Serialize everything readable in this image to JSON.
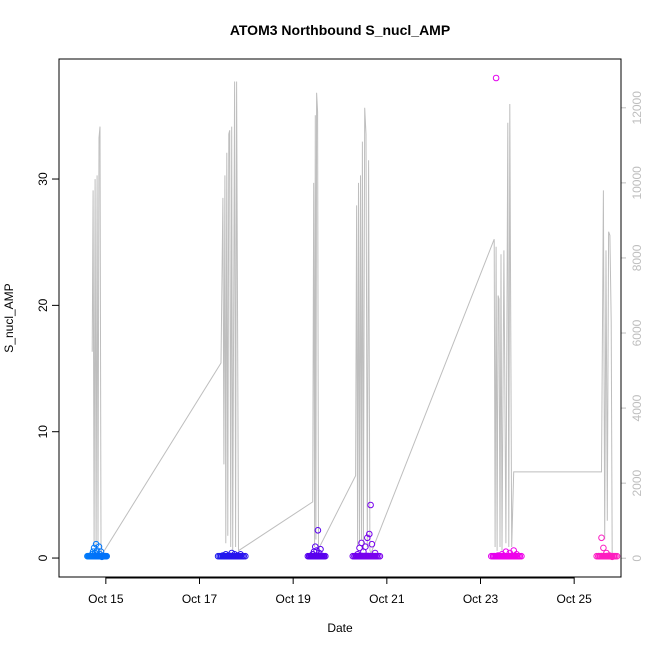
{
  "chart_data": {
    "type": "scatter",
    "title": "ATOM3 Northbound S_nucl_AMP",
    "xlabel": "Date",
    "ylabel": "S_nucl_AMP",
    "xlim": [
      "2020-10-14T00:00",
      "2020-10-26T00:00"
    ],
    "ylim": [
      -1.5,
      39.5
    ],
    "y2lim": [
      -500,
      13300
    ],
    "x_ticks": [
      {
        "date": "2020-10-15T00:00",
        "label": "Oct 15"
      },
      {
        "date": "2020-10-17T00:00",
        "label": "Oct 17"
      },
      {
        "date": "2020-10-19T00:00",
        "label": "Oct 19"
      },
      {
        "date": "2020-10-21T00:00",
        "label": "Oct 21"
      },
      {
        "date": "2020-10-23T00:00",
        "label": "Oct 23"
      },
      {
        "date": "2020-10-25T00:00",
        "label": "Oct 25"
      }
    ],
    "y_ticks": [
      0,
      10,
      20,
      30
    ],
    "y2_ticks": [
      0,
      2000,
      4000,
      6000,
      8000,
      10000,
      12000
    ],
    "grid": false,
    "series": [
      {
        "role": "points",
        "color_scale": [
          "#0099ff",
          "#0033ee",
          "#4400ee",
          "#8800ee",
          "#ee00ee",
          "#ff22bb"
        ],
        "points": [
          [
            "2020-10-14T17:00",
            0.3
          ],
          [
            "2020-10-14T17:30",
            0.5
          ],
          [
            "2020-10-14T18:00",
            0.8
          ],
          [
            "2020-10-14T18:30",
            0.4
          ],
          [
            "2020-10-14T19:00",
            1.1
          ],
          [
            "2020-10-14T19:30",
            0.6
          ],
          [
            "2020-10-14T20:00",
            0.2
          ],
          [
            "2020-10-14T20:30",
            0.9
          ],
          [
            "2020-10-14T21:00",
            0.3
          ],
          [
            "2020-10-14T21:30",
            0.5
          ],
          [
            "2020-10-14T22:00",
            0.1
          ],
          [
            "2020-10-17T12:00",
            0.2
          ],
          [
            "2020-10-17T13:30",
            0.3
          ],
          [
            "2020-10-17T15:00",
            0.2
          ],
          [
            "2020-10-17T16:30",
            0.4
          ],
          [
            "2020-10-17T18:00",
            0.3
          ],
          [
            "2020-10-17T19:30",
            0.2
          ],
          [
            "2020-10-17T21:00",
            0.3
          ],
          [
            "2020-10-19T10:00",
            0.3
          ],
          [
            "2020-10-19T10:40",
            0.5
          ],
          [
            "2020-10-19T11:20",
            0.9
          ],
          [
            "2020-10-19T12:00",
            0.6
          ],
          [
            "2020-10-19T12:40",
            2.2
          ],
          [
            "2020-10-19T13:20",
            0.4
          ],
          [
            "2020-10-19T14:00",
            0.7
          ],
          [
            "2020-10-20T09:00",
            0.3
          ],
          [
            "2020-10-20T10:00",
            0.8
          ],
          [
            "2020-10-20T11:00",
            1.2
          ],
          [
            "2020-10-20T12:00",
            0.5
          ],
          [
            "2020-10-20T13:00",
            0.9
          ],
          [
            "2020-10-20T14:00",
            1.6
          ],
          [
            "2020-10-20T15:00",
            1.9
          ],
          [
            "2020-10-20T15:40",
            4.2
          ],
          [
            "2020-10-20T16:20",
            1.1
          ],
          [
            "2020-10-20T18:00",
            0.4
          ],
          [
            "2020-10-23T08:00",
            38.0
          ],
          [
            "2020-10-23T09:00",
            0.2
          ],
          [
            "2020-10-23T11:00",
            0.3
          ],
          [
            "2020-10-23T13:00",
            0.5
          ],
          [
            "2020-10-23T15:00",
            0.4
          ],
          [
            "2020-10-23T17:00",
            0.6
          ],
          [
            "2020-10-23T18:30",
            0.3
          ],
          [
            "2020-10-25T14:00",
            1.6
          ],
          [
            "2020-10-25T15:00",
            0.8
          ],
          [
            "2020-10-25T16:30",
            0.4
          ],
          [
            "2020-10-25T18:00",
            0.2
          ],
          [
            "2020-10-25T19:30",
            0.1
          ]
        ]
      },
      {
        "role": "secondary-line",
        "color": "#bebebe",
        "points": [
          [
            "2020-10-14T17:00",
            5500
          ],
          [
            "2020-10-14T17:30",
            9800
          ],
          [
            "2020-10-14T18:00",
            300
          ],
          [
            "2020-10-14T18:30",
            10100
          ],
          [
            "2020-10-14T19:00",
            200
          ],
          [
            "2020-10-14T19:30",
            10200
          ],
          [
            "2020-10-14T20:00",
            400
          ],
          [
            "2020-10-14T20:30",
            11200
          ],
          [
            "2020-10-14T21:00",
            11500
          ],
          [
            "2020-10-14T21:30",
            300
          ],
          [
            "2020-10-14T22:00",
            100
          ],
          [
            "2020-10-17T11:00",
            5200
          ],
          [
            "2020-10-17T12:00",
            9600
          ],
          [
            "2020-10-17T12:30",
            2500
          ],
          [
            "2020-10-17T13:00",
            10200
          ],
          [
            "2020-10-17T13:30",
            400
          ],
          [
            "2020-10-17T14:00",
            10800
          ],
          [
            "2020-10-17T14:30",
            600
          ],
          [
            "2020-10-17T15:00",
            11300
          ],
          [
            "2020-10-17T15:30",
            11400
          ],
          [
            "2020-10-17T16:00",
            300
          ],
          [
            "2020-10-17T16:30",
            11500
          ],
          [
            "2020-10-17T17:00",
            200
          ],
          [
            "2020-10-17T18:00",
            12700
          ],
          [
            "2020-10-17T18:30",
            300
          ],
          [
            "2020-10-17T19:00",
            12700
          ],
          [
            "2020-10-17T20:00",
            200
          ],
          [
            "2020-10-19T10:00",
            1500
          ],
          [
            "2020-10-19T10:30",
            10000
          ],
          [
            "2020-10-19T11:00",
            300
          ],
          [
            "2020-10-19T11:20",
            11800
          ],
          [
            "2020-10-19T11:40",
            500
          ],
          [
            "2020-10-19T12:00",
            12400
          ],
          [
            "2020-10-19T12:30",
            11900
          ],
          [
            "2020-10-19T13:00",
            200
          ],
          [
            "2020-10-19T13:30",
            300
          ],
          [
            "2020-10-20T08:00",
            2200
          ],
          [
            "2020-10-20T08:30",
            9400
          ],
          [
            "2020-10-20T09:00",
            300
          ],
          [
            "2020-10-20T09:30",
            10000
          ],
          [
            "2020-10-20T10:00",
            400
          ],
          [
            "2020-10-20T10:30",
            10200
          ],
          [
            "2020-10-20T11:00",
            500
          ],
          [
            "2020-10-20T11:30",
            11100
          ],
          [
            "2020-10-20T12:00",
            200
          ],
          [
            "2020-10-20T12:40",
            12000
          ],
          [
            "2020-10-20T13:20",
            11300
          ],
          [
            "2020-10-20T14:00",
            300
          ],
          [
            "2020-10-20T14:40",
            10600
          ],
          [
            "2020-10-20T15:20",
            200
          ],
          [
            "2020-10-20T16:00",
            150
          ],
          [
            "2020-10-23T07:00",
            8500
          ],
          [
            "2020-10-23T07:30",
            300
          ],
          [
            "2020-10-23T08:00",
            8300
          ],
          [
            "2020-10-23T08:30",
            200
          ],
          [
            "2020-10-23T09:00",
            7000
          ],
          [
            "2020-10-23T09:30",
            6900
          ],
          [
            "2020-10-23T10:00",
            300
          ],
          [
            "2020-10-23T10:30",
            8100
          ],
          [
            "2020-10-23T11:00",
            200
          ],
          [
            "2020-10-23T12:00",
            8200
          ],
          [
            "2020-10-23T13:00",
            400
          ],
          [
            "2020-10-23T14:00",
            11600
          ],
          [
            "2020-10-23T14:30",
            300
          ],
          [
            "2020-10-23T15:00",
            12100
          ],
          [
            "2020-10-23T16:00",
            300
          ],
          [
            "2020-10-23T17:00",
            2300
          ],
          [
            "2020-10-23T20:00",
            2300
          ],
          [
            "2020-10-25T14:00",
            2300
          ],
          [
            "2020-10-25T15:00",
            9800
          ],
          [
            "2020-10-25T15:40",
            500
          ],
          [
            "2020-10-25T16:20",
            8200
          ],
          [
            "2020-10-25T17:00",
            1000
          ],
          [
            "2020-10-25T17:40",
            8700
          ],
          [
            "2020-10-25T18:20",
            8600
          ],
          [
            "2020-10-25T19:00",
            6300
          ],
          [
            "2020-10-25T19:30",
            0
          ]
        ]
      }
    ]
  }
}
